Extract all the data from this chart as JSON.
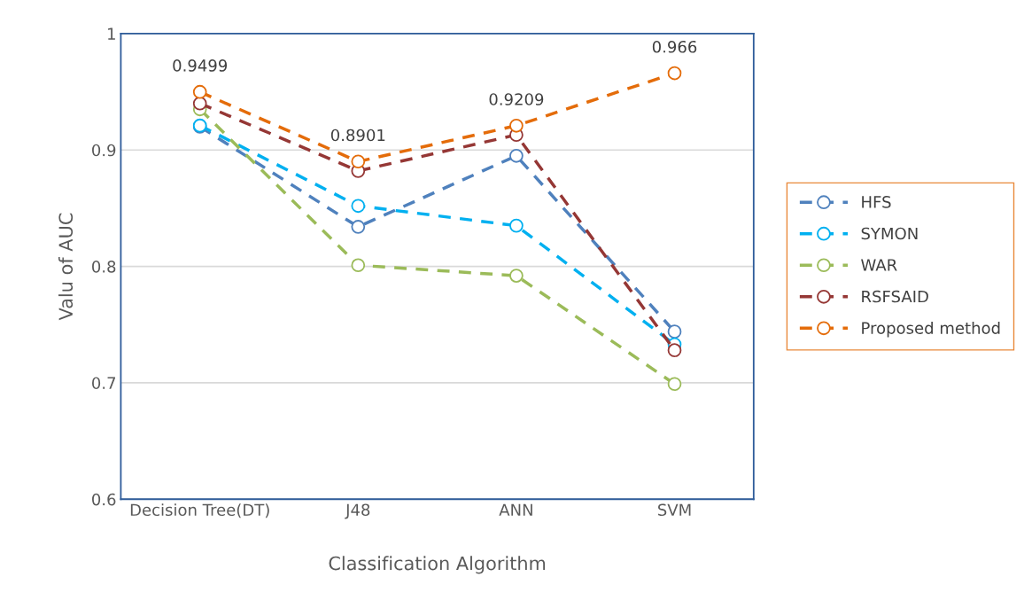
{
  "chart_data": {
    "type": "line",
    "xlabel": "Classification Algorithm",
    "ylabel": "Valu of AUC",
    "categories": [
      "Decision Tree(DT)",
      "J48",
      "ANN",
      "SVM"
    ],
    "series": [
      {
        "name": "HFS",
        "color": "#4f81bd",
        "values": [
          0.92,
          0.834,
          0.895,
          0.744
        ]
      },
      {
        "name": "SYMON",
        "color": "#00b0f0",
        "values": [
          0.921,
          0.852,
          0.835,
          0.733
        ]
      },
      {
        "name": "WAR",
        "color": "#9bbb59",
        "values": [
          0.935,
          0.801,
          0.792,
          0.699
        ]
      },
      {
        "name": "RSFSAID",
        "color": "#953735",
        "values": [
          0.94,
          0.882,
          0.913,
          0.728
        ]
      },
      {
        "name": "Proposed method",
        "color": "#e46c0a",
        "values": [
          0.9499,
          0.8901,
          0.9209,
          0.966
        ],
        "value_labels": [
          "0.9499",
          "0.8901",
          "0.9209",
          "0.966"
        ]
      }
    ],
    "ylim": [
      0.6,
      1
    ],
    "yticks": [
      0.6,
      0.7,
      0.8,
      0.9,
      1
    ],
    "grid": "y",
    "legend": "right",
    "marker": "circle",
    "line_style": "dashed"
  }
}
